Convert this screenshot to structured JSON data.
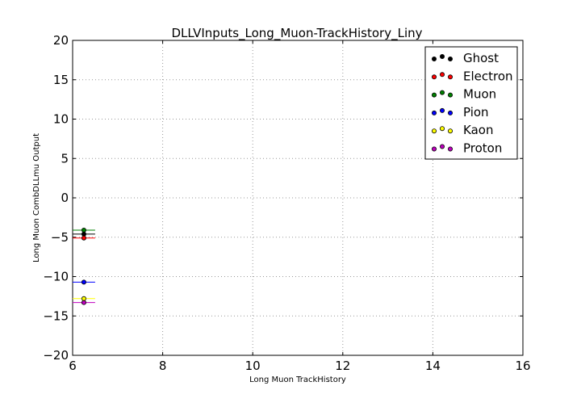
{
  "chart_data": {
    "type": "scatter",
    "title": "DLLVInputs_Long_Muon-TrackHistory_Liny",
    "xlabel": "Long Muon TrackHistory",
    "ylabel": "Long Muon CombDLLmu Output",
    "xlim": [
      6,
      16
    ],
    "ylim": [
      -20,
      20
    ],
    "xticks": [
      6,
      8,
      10,
      12,
      14,
      16
    ],
    "yticks": [
      20,
      15,
      10,
      5,
      0,
      -5,
      -10,
      -15,
      -20
    ],
    "xtick_labels": [
      "6",
      "8",
      "10",
      "12",
      "14",
      "16"
    ],
    "ytick_labels": [
      "20",
      "15",
      "10",
      "5",
      "0",
      "−5",
      "−10",
      "−15",
      "−20"
    ],
    "grid": true,
    "legend_position": "top-right",
    "series": [
      {
        "name": "Ghost",
        "color": "#000000",
        "x": [
          6.25
        ],
        "y": [
          -4.6
        ],
        "xerr": [
          0.25
        ]
      },
      {
        "name": "Electron",
        "color": "#ff0000",
        "x": [
          6.25
        ],
        "y": [
          -5.1
        ],
        "xerr": [
          0.25
        ]
      },
      {
        "name": "Muon",
        "color": "#008000",
        "x": [
          6.25
        ],
        "y": [
          -4.1
        ],
        "xerr": [
          0.25
        ]
      },
      {
        "name": "Pion",
        "color": "#0000ff",
        "x": [
          6.25
        ],
        "y": [
          -10.7
        ],
        "xerr": [
          0.25
        ]
      },
      {
        "name": "Kaon",
        "color": "#ffff00",
        "x": [
          6.25
        ],
        "y": [
          -12.8
        ],
        "xerr": [
          0.25
        ]
      },
      {
        "name": "Proton",
        "color": "#bf00bf",
        "x": [
          6.25
        ],
        "y": [
          -13.3
        ],
        "xerr": [
          0.25
        ]
      }
    ]
  }
}
